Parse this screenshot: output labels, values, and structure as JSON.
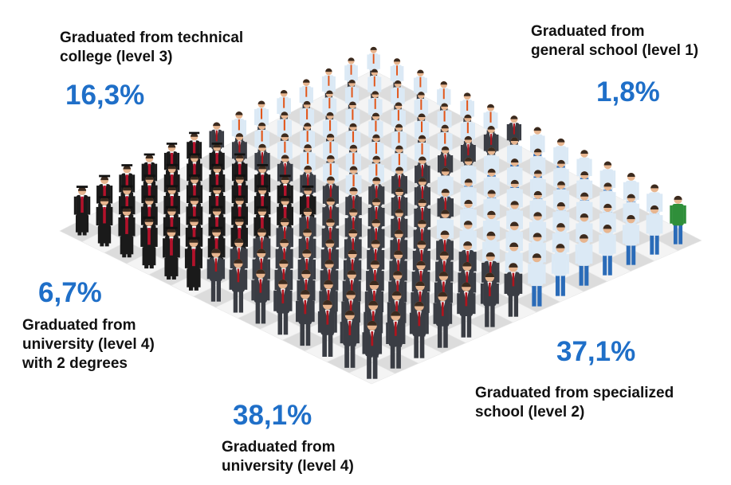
{
  "colors": {
    "accent": "#1f6fc8",
    "text": "#111111",
    "tile_light": "#f4f4f4",
    "tile_dark": "#dcdcdc",
    "gown": "#1a1a1a",
    "gown_sash": "#b3122b",
    "shirt": "#dbe9f5",
    "tie": "#e2561a",
    "suit": "#3a3d44",
    "red_tie": "#b0141d",
    "jeans": "#2a6bb8",
    "green_shirt": "#2f8f3a"
  },
  "groups": [
    {
      "id": "general",
      "label": "Graduated from\ngeneral school (level 1)",
      "percent": "1,8%",
      "figure": "green-shirt-worker-icon"
    },
    {
      "id": "technical",
      "label": "Graduated from technical\ncollege (level 3)",
      "percent": "16,3%",
      "figure": "office-worker-orange-tie-icon"
    },
    {
      "id": "two_degrees",
      "label": "Graduated from\nuniversity (level 4)\nwith 2 degrees",
      "percent": "6,7%",
      "figure": "graduate-gown-icon"
    },
    {
      "id": "university",
      "label": "Graduated from\nuniversity (level 4)",
      "percent": "38,1%",
      "figure": "businessman-suit-icon"
    },
    {
      "id": "specialized",
      "label": "Graduated from specialized\nschool (level 2)",
      "percent": "37,1%",
      "figure": "worker-jeans-icon"
    }
  ]
}
